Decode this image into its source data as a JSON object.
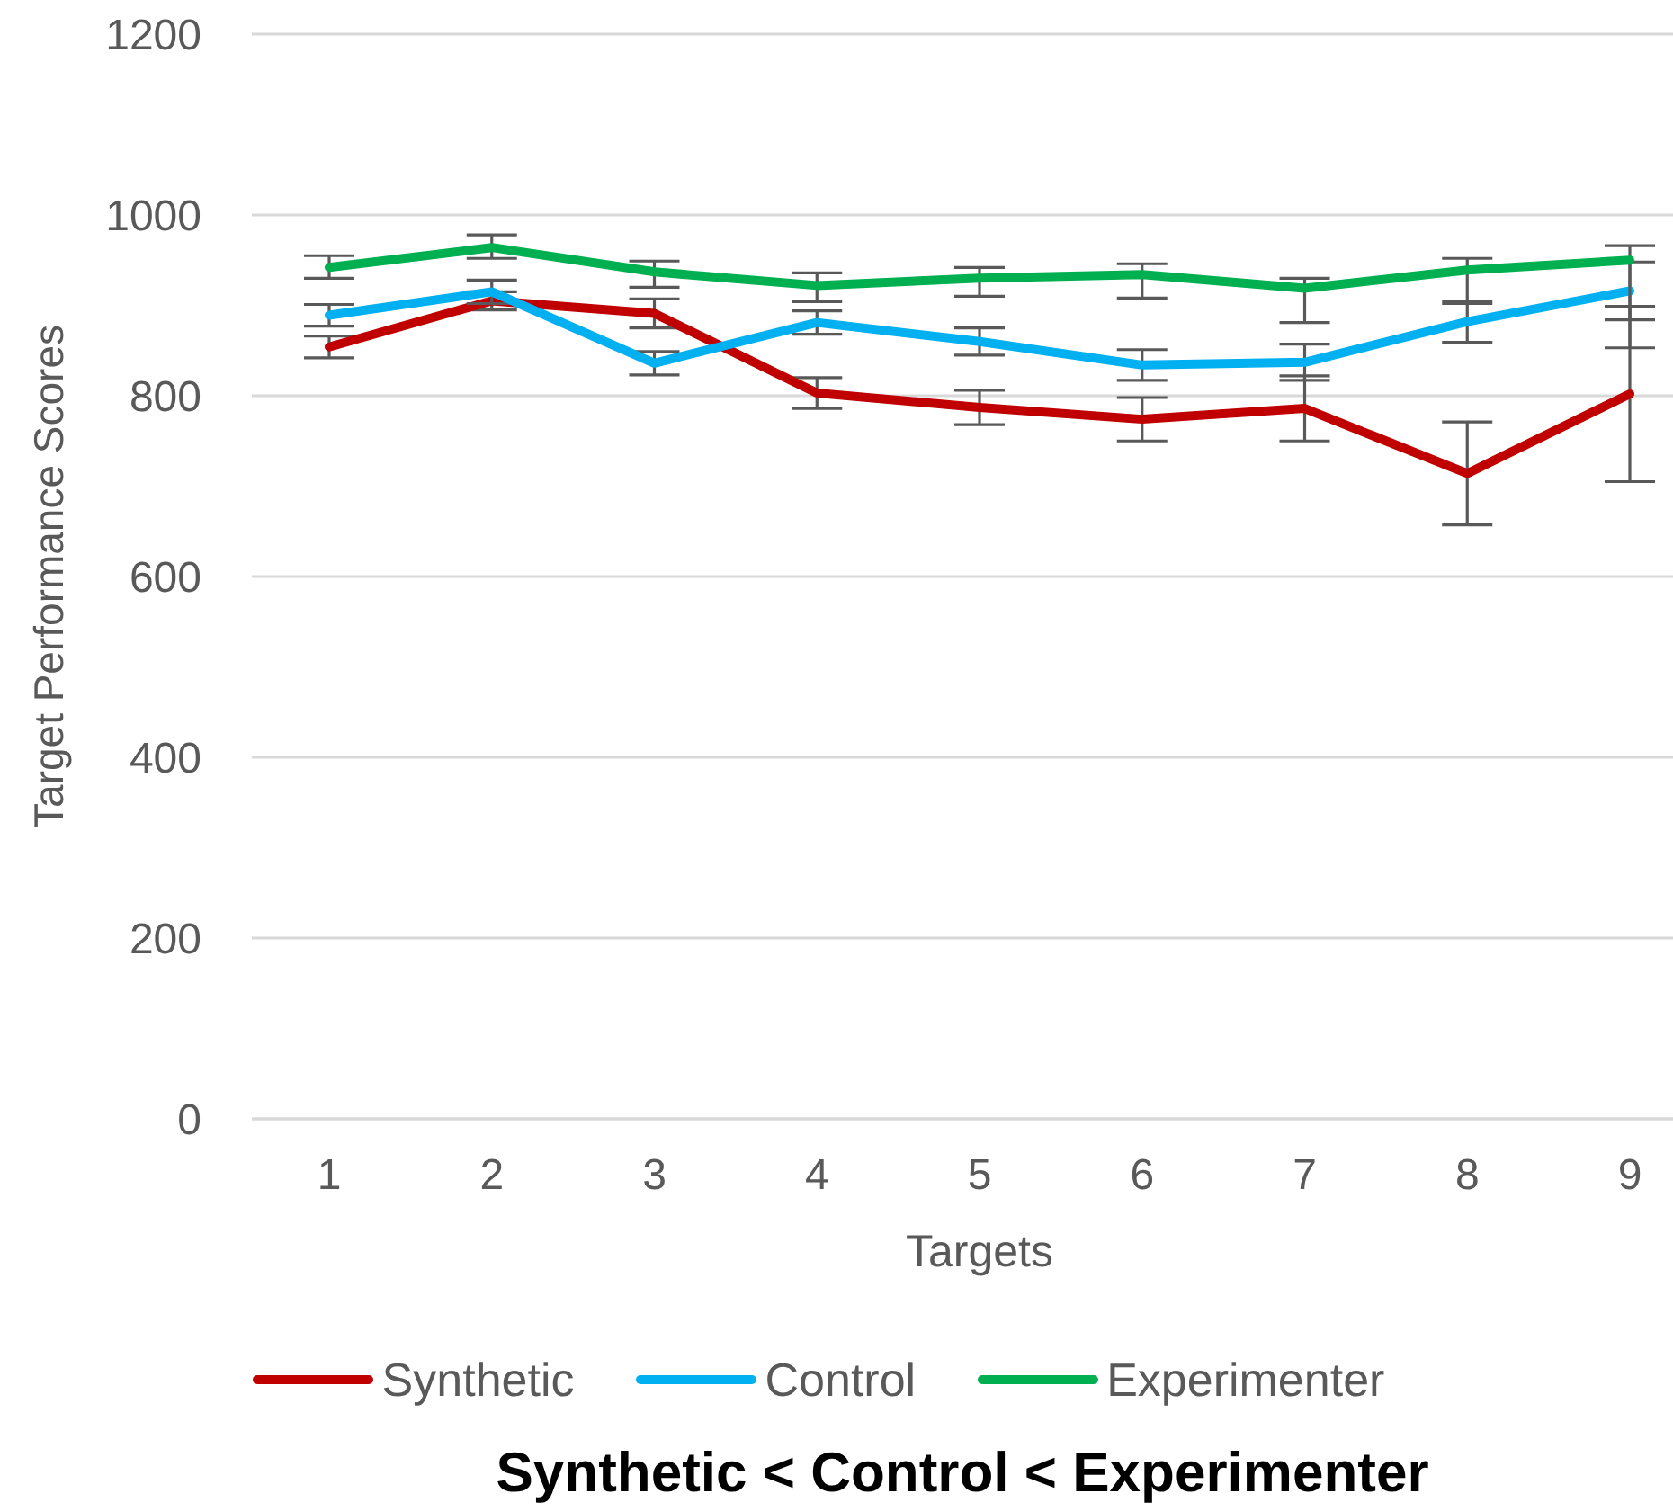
{
  "chart_data": {
    "type": "line",
    "title": "Synthetic < Control < Experimenter",
    "xlabel": "Targets",
    "ylabel": "Target Performance Scores",
    "categories": [
      "1",
      "2",
      "3",
      "4",
      "5",
      "6",
      "7",
      "8",
      "9"
    ],
    "series": [
      {
        "name": "Synthetic",
        "color": "#c00000",
        "values": [
          854,
          905,
          891,
          803,
          787,
          774,
          786,
          714,
          802
        ],
        "errors": [
          12,
          10,
          16,
          17,
          19,
          24,
          36,
          57,
          97
        ]
      },
      {
        "name": "Control",
        "color": "#00b0f0",
        "values": [
          889,
          915,
          836,
          881,
          860,
          834,
          837,
          882,
          916
        ],
        "errors": [
          12,
          13,
          13,
          13,
          15,
          17,
          20,
          23,
          32
        ]
      },
      {
        "name": "Experimenter",
        "color": "#00b050",
        "values": [
          942,
          964,
          937,
          922,
          930,
          934,
          919,
          939,
          950
        ],
        "errors": [
          [
            930,
            955
          ],
          [
            952,
            978
          ],
          [
            920,
            949
          ],
          [
            904,
            936
          ],
          [
            910,
            942
          ],
          [
            908,
            946
          ],
          [
            881,
            930
          ],
          [
            902,
            952
          ],
          [
            853,
            966
          ]
        ]
      }
    ],
    "ylim": [
      0,
      1200
    ],
    "yticks": [
      0,
      200,
      400,
      600,
      800,
      1000,
      1200
    ],
    "grid": "y",
    "legend": "bottom",
    "marker": "none",
    "line_style": "solid"
  }
}
